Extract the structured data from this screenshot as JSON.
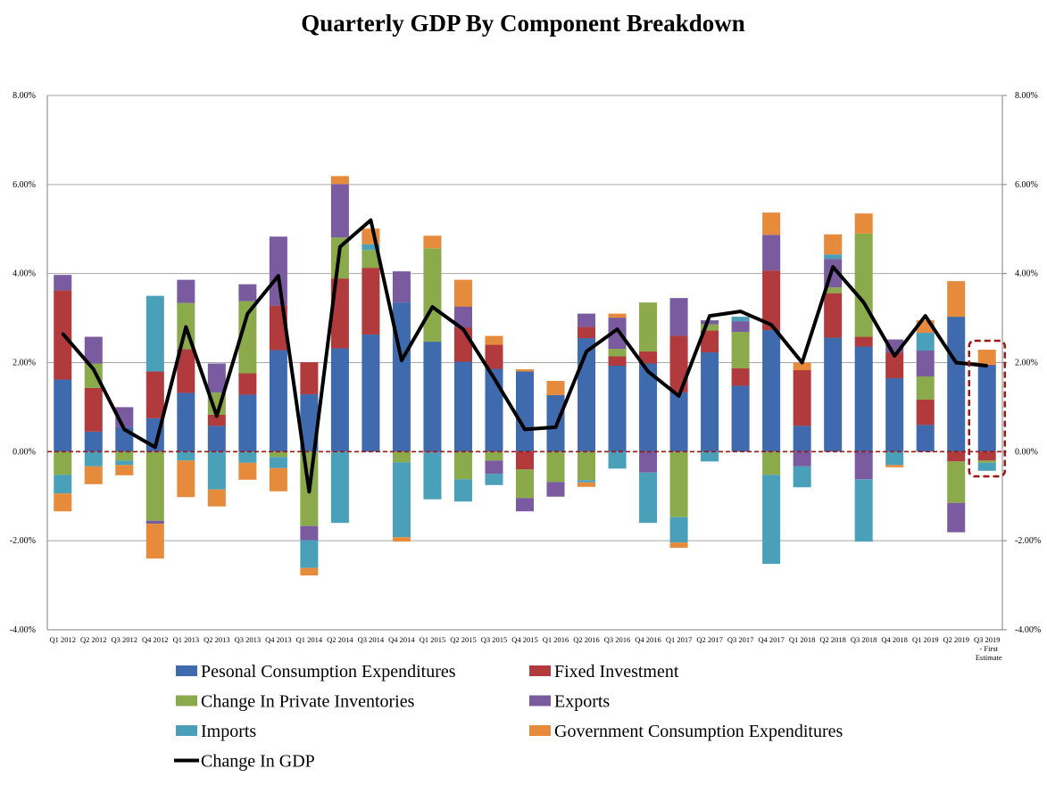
{
  "chart_data": {
    "type": "bar",
    "stacked": true,
    "title": "Quarterly GDP By Component Breakdown",
    "xlabel": "",
    "ylabel": "",
    "ylim": [
      -4,
      8
    ],
    "yticks": [
      -4,
      -2,
      0,
      2,
      4,
      6,
      8
    ],
    "ytick_labels": [
      "-4.00%",
      "-2.00%",
      "0.00%",
      "2.00%",
      "4.00%",
      "6.00%",
      "8.00%"
    ],
    "grid": true,
    "legend_position": "bottom",
    "categories": [
      "Q1 2012",
      "Q2 2012",
      "Q3 2012",
      "Q4 2012",
      "Q1 2013",
      "Q2 2013",
      "Q3 2013",
      "Q4 2013",
      "Q1 2014",
      "Q2 2014",
      "Q3 2014",
      "Q4 2014",
      "Q1 2015",
      "Q2 2015",
      "Q3 2015",
      "Q4 2015",
      "Q1 2016",
      "Q2 2016",
      "Q3 2016",
      "Q4 2016",
      "Q1 2017",
      "Q2 2017",
      "Q3 2017",
      "Q4 2017",
      "Q1 2018",
      "Q2 2018",
      "Q3 2018",
      "Q4 2018",
      "Q1 2019",
      "Q2 2019",
      "Q3 2019"
    ],
    "category_sublabels": {
      "Q3 2019": [
        "- First",
        "Estimate"
      ]
    },
    "series": [
      {
        "name": "Pesonal Consumption Expenditures",
        "color": "#3f6aad",
        "values": [
          1.62,
          0.45,
          0.55,
          0.75,
          1.32,
          0.58,
          1.28,
          2.28,
          1.29,
          2.32,
          2.63,
          3.35,
          2.47,
          2.02,
          1.86,
          1.8,
          1.27,
          2.55,
          1.93,
          1.98,
          1.33,
          2.23,
          1.48,
          2.73,
          0.58,
          2.56,
          2.36,
          1.65,
          0.6,
          3.03,
          1.93
        ]
      },
      {
        "name": "Fixed Investment",
        "color": "#b13a3d",
        "values": [
          2.0,
          0.98,
          0,
          1.05,
          0.98,
          0.25,
          0.48,
          1.0,
          0.72,
          1.57,
          1.5,
          0,
          0,
          0.77,
          0.54,
          -0.4,
          0,
          0.25,
          0.21,
          0.27,
          1.27,
          0.49,
          0.39,
          1.34,
          1.25,
          1.0,
          0.22,
          0.57,
          0.57,
          -0.22,
          -0.2
        ]
      },
      {
        "name": "Change In Private Inventories",
        "color": "#8aaa4c",
        "values": [
          -0.52,
          0.55,
          -0.2,
          -1.55,
          1.04,
          0.5,
          1.62,
          -0.12,
          -1.67,
          0.92,
          0.4,
          -0.24,
          2.1,
          -0.62,
          -0.2,
          -0.64,
          -0.68,
          -0.64,
          0.17,
          1.1,
          -1.47,
          0.14,
          0.82,
          -0.52,
          0,
          0.13,
          2.32,
          0,
          0.52,
          -0.93,
          -0.05
        ]
      },
      {
        "name": "Exports",
        "color": "#7a5ba0",
        "values": [
          0.35,
          0.6,
          0.45,
          -0.07,
          0.52,
          0.65,
          0.38,
          1.55,
          -0.32,
          1.2,
          0,
          0.7,
          -0.02,
          0.47,
          -0.3,
          -0.3,
          -0.33,
          0.3,
          0.7,
          -0.47,
          0.85,
          0.09,
          0.24,
          0.8,
          -0.33,
          0.64,
          -0.62,
          0.3,
          0.58,
          -0.66,
          0.02
        ]
      },
      {
        "name": "Imports",
        "color": "#4aa0b8",
        "values": [
          -0.42,
          -0.33,
          -0.1,
          1.7,
          -0.2,
          -0.85,
          -0.25,
          -0.25,
          -0.62,
          -1.6,
          0.13,
          -1.68,
          -1.05,
          -0.5,
          -0.25,
          0,
          0,
          -0.05,
          -0.38,
          -1.13,
          -0.57,
          -0.22,
          0.1,
          -2.0,
          -0.47,
          0.1,
          -1.4,
          -0.3,
          0.4,
          0,
          -0.18
        ]
      },
      {
        "name": "Government Consumption Expenditures",
        "color": "#e68a3c",
        "values": [
          -0.4,
          -0.4,
          -0.23,
          -0.78,
          -0.82,
          -0.38,
          -0.38,
          -0.52,
          -0.17,
          0.18,
          0.35,
          -0.1,
          0.28,
          0.6,
          0.2,
          0.05,
          0.32,
          -0.1,
          0.09,
          0,
          -0.12,
          0,
          0,
          0.5,
          0.17,
          0.45,
          0.45,
          -0.05,
          0.28,
          0.8,
          0.34
        ]
      }
    ],
    "line_series": {
      "name": "Change In GDP",
      "color": "#000000",
      "values": [
        2.65,
        1.85,
        0.5,
        0.1,
        2.8,
        0.8,
        3.1,
        3.95,
        -0.9,
        4.6,
        5.2,
        2.05,
        3.25,
        2.75,
        1.65,
        0.5,
        0.55,
        2.25,
        2.75,
        1.8,
        1.25,
        3.05,
        3.15,
        2.85,
        2.0,
        4.15,
        3.35,
        2.15,
        3.05,
        2.0,
        1.93
      ]
    },
    "zero_line": {
      "color": "#a01616",
      "style": "dashed"
    },
    "highlight": {
      "category": "Q3 2019",
      "color": "#a01616",
      "style": "dashed"
    }
  }
}
